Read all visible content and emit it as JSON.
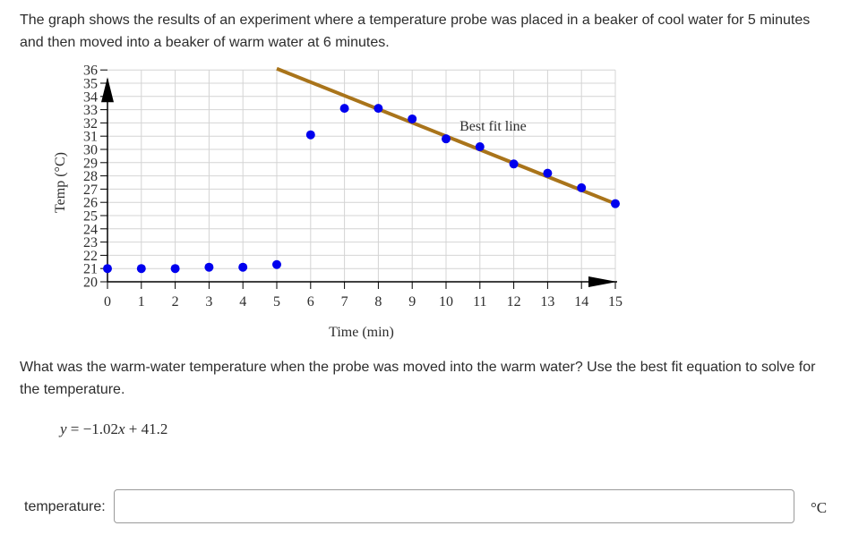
{
  "intro_text": "The graph shows the results of an experiment where a temperature probe was placed in a beaker of cool water for 5 minutes and then moved into a beaker of warm water at 6 minutes.",
  "question_text": "What was the warm-water temperature when the probe was moved into the warm water? Use the best fit equation to solve for the temperature.",
  "equation": {
    "lhs": "y",
    "eq": " = −1.02",
    "x": "x",
    "rest": " + 41.2"
  },
  "answer": {
    "label": "temperature:",
    "value": "",
    "unit": "°C"
  },
  "chart_data": {
    "type": "scatter",
    "xlabel": "Time (min)",
    "ylabel": "Temp (°C)",
    "xlim": [
      0,
      15
    ],
    "ylim": [
      20,
      36
    ],
    "x_ticks": [
      "0",
      "1",
      "2",
      "3",
      "4",
      "5",
      "6",
      "7",
      "8",
      "9",
      "10",
      "11",
      "12",
      "13",
      "14",
      "15"
    ],
    "y_ticks": [
      "20",
      "21",
      "22",
      "23",
      "24",
      "25",
      "26",
      "27",
      "28",
      "29",
      "30",
      "31",
      "32",
      "33",
      "34",
      "35",
      "36"
    ],
    "grid": true,
    "point_color": "#0000ee",
    "line_color": "#a9741a",
    "points": [
      {
        "x": 0,
        "y": 21
      },
      {
        "x": 1,
        "y": 21
      },
      {
        "x": 2,
        "y": 21
      },
      {
        "x": 3,
        "y": 21.1
      },
      {
        "x": 4,
        "y": 21.1
      },
      {
        "x": 5,
        "y": 21.3
      },
      {
        "x": 6,
        "y": 31.1
      },
      {
        "x": 7,
        "y": 33.1
      },
      {
        "x": 8,
        "y": 33.1
      },
      {
        "x": 9,
        "y": 32.3
      },
      {
        "x": 10,
        "y": 30.8
      },
      {
        "x": 11,
        "y": 30.2
      },
      {
        "x": 12,
        "y": 28.9
      },
      {
        "x": 13,
        "y": 28.2
      },
      {
        "x": 14,
        "y": 27.1
      },
      {
        "x": 15,
        "y": 25.9
      }
    ],
    "best_fit": {
      "label": "Best fit line",
      "slope": -1.02,
      "intercept": 41.2,
      "x_range": [
        5,
        15
      ]
    }
  }
}
